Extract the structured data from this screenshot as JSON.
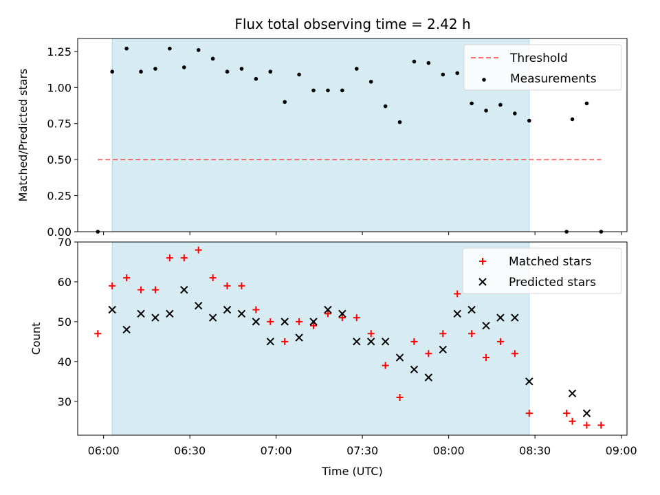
{
  "title": "Flux total observing time = 2.42 h",
  "colors": {
    "shade": "#add8e6",
    "threshold": "#ff0000",
    "matched": "#ff0000",
    "predicted": "#000000",
    "measurements": "#000000"
  },
  "chart_data": [
    {
      "type": "scatter",
      "ylabel": "Matched/Predicted stars",
      "xlabel": "",
      "x_range": [
        "05:51",
        "09:02"
      ],
      "ylim": [
        0,
        1.34
      ],
      "yticks": [
        0.0,
        0.25,
        0.5,
        0.75,
        1.0,
        1.25
      ],
      "ytick_labels": [
        "0.00",
        "0.25",
        "0.50",
        "0.75",
        "1.00",
        "1.25"
      ],
      "observing_window": [
        "06:03",
        "08:28"
      ],
      "threshold": {
        "name": "Threshold",
        "value": 0.5,
        "x": [
          "05:58",
          "08:53"
        ],
        "style": "dashed"
      },
      "legend": {
        "position": "top-right",
        "entries": [
          "Threshold",
          "Measurements"
        ]
      },
      "series": [
        {
          "name": "Measurements",
          "points": [
            [
              "05:58",
              0.0
            ],
            [
              "06:03",
              1.11
            ],
            [
              "06:08",
              1.27
            ],
            [
              "06:13",
              1.11
            ],
            [
              "06:18",
              1.13
            ],
            [
              "06:23",
              1.27
            ],
            [
              "06:28",
              1.14
            ],
            [
              "06:33",
              1.26
            ],
            [
              "06:38",
              1.2
            ],
            [
              "06:43",
              1.11
            ],
            [
              "06:48",
              1.13
            ],
            [
              "06:53",
              1.06
            ],
            [
              "06:58",
              1.11
            ],
            [
              "07:03",
              0.9
            ],
            [
              "07:08",
              1.09
            ],
            [
              "07:13",
              0.98
            ],
            [
              "07:18",
              0.98
            ],
            [
              "07:23",
              0.98
            ],
            [
              "07:28",
              1.13
            ],
            [
              "07:33",
              1.04
            ],
            [
              "07:38",
              0.87
            ],
            [
              "07:43",
              0.76
            ],
            [
              "07:48",
              1.18
            ],
            [
              "07:53",
              1.17
            ],
            [
              "07:58",
              1.09
            ],
            [
              "08:03",
              1.1
            ],
            [
              "08:08",
              0.89
            ],
            [
              "08:13",
              0.84
            ],
            [
              "08:18",
              0.88
            ],
            [
              "08:23",
              0.82
            ],
            [
              "08:28",
              0.77
            ],
            [
              "08:41",
              0.0
            ],
            [
              "08:43",
              0.78
            ],
            [
              "08:48",
              0.89
            ],
            [
              "08:53",
              0.0
            ]
          ]
        }
      ]
    },
    {
      "type": "scatter",
      "xlabel": "Time (UTC)",
      "ylabel": "Count",
      "x_range": [
        "05:51",
        "09:02"
      ],
      "xticks": [
        "06:00",
        "06:30",
        "07:00",
        "07:30",
        "08:00",
        "08:30",
        "09:00"
      ],
      "ylim": [
        21.5,
        70
      ],
      "yticks": [
        30,
        40,
        50,
        60,
        70
      ],
      "observing_window": [
        "06:03",
        "08:28"
      ],
      "legend": {
        "position": "top-right",
        "entries": [
          "Matched stars",
          "Predicted stars"
        ]
      },
      "series": [
        {
          "name": "Matched stars",
          "marker": "+",
          "points": [
            [
              "05:58",
              47
            ],
            [
              "06:03",
              59
            ],
            [
              "06:08",
              61
            ],
            [
              "06:13",
              58
            ],
            [
              "06:18",
              58
            ],
            [
              "06:23",
              66
            ],
            [
              "06:28",
              66
            ],
            [
              "06:33",
              68
            ],
            [
              "06:38",
              61
            ],
            [
              "06:43",
              59
            ],
            [
              "06:48",
              59
            ],
            [
              "06:53",
              53
            ],
            [
              "06:58",
              50
            ],
            [
              "07:03",
              45
            ],
            [
              "07:08",
              50
            ],
            [
              "07:13",
              49
            ],
            [
              "07:18",
              52
            ],
            [
              "07:23",
              51
            ],
            [
              "07:28",
              51
            ],
            [
              "07:33",
              47
            ],
            [
              "07:38",
              39
            ],
            [
              "07:43",
              31
            ],
            [
              "07:48",
              45
            ],
            [
              "07:53",
              42
            ],
            [
              "07:58",
              47
            ],
            [
              "08:03",
              57
            ],
            [
              "08:08",
              47
            ],
            [
              "08:13",
              41
            ],
            [
              "08:18",
              45
            ],
            [
              "08:23",
              42
            ],
            [
              "08:28",
              27
            ],
            [
              "08:41",
              27
            ],
            [
              "08:43",
              25
            ],
            [
              "08:48",
              24
            ],
            [
              "08:53",
              24
            ]
          ]
        },
        {
          "name": "Predicted stars",
          "marker": "x",
          "points": [
            [
              "06:03",
              53
            ],
            [
              "06:08",
              48
            ],
            [
              "06:13",
              52
            ],
            [
              "06:18",
              51
            ],
            [
              "06:23",
              52
            ],
            [
              "06:28",
              58
            ],
            [
              "06:33",
              54
            ],
            [
              "06:38",
              51
            ],
            [
              "06:43",
              53
            ],
            [
              "06:48",
              52
            ],
            [
              "06:53",
              50
            ],
            [
              "06:58",
              45
            ],
            [
              "07:03",
              50
            ],
            [
              "07:08",
              46
            ],
            [
              "07:13",
              50
            ],
            [
              "07:18",
              53
            ],
            [
              "07:23",
              52
            ],
            [
              "07:28",
              45
            ],
            [
              "07:33",
              45
            ],
            [
              "07:38",
              45
            ],
            [
              "07:43",
              41
            ],
            [
              "07:48",
              38
            ],
            [
              "07:53",
              36
            ],
            [
              "07:58",
              43
            ],
            [
              "08:03",
              52
            ],
            [
              "08:08",
              53
            ],
            [
              "08:13",
              49
            ],
            [
              "08:18",
              51
            ],
            [
              "08:23",
              51
            ],
            [
              "08:28",
              35
            ],
            [
              "08:43",
              32
            ],
            [
              "08:48",
              27
            ]
          ]
        }
      ]
    }
  ]
}
